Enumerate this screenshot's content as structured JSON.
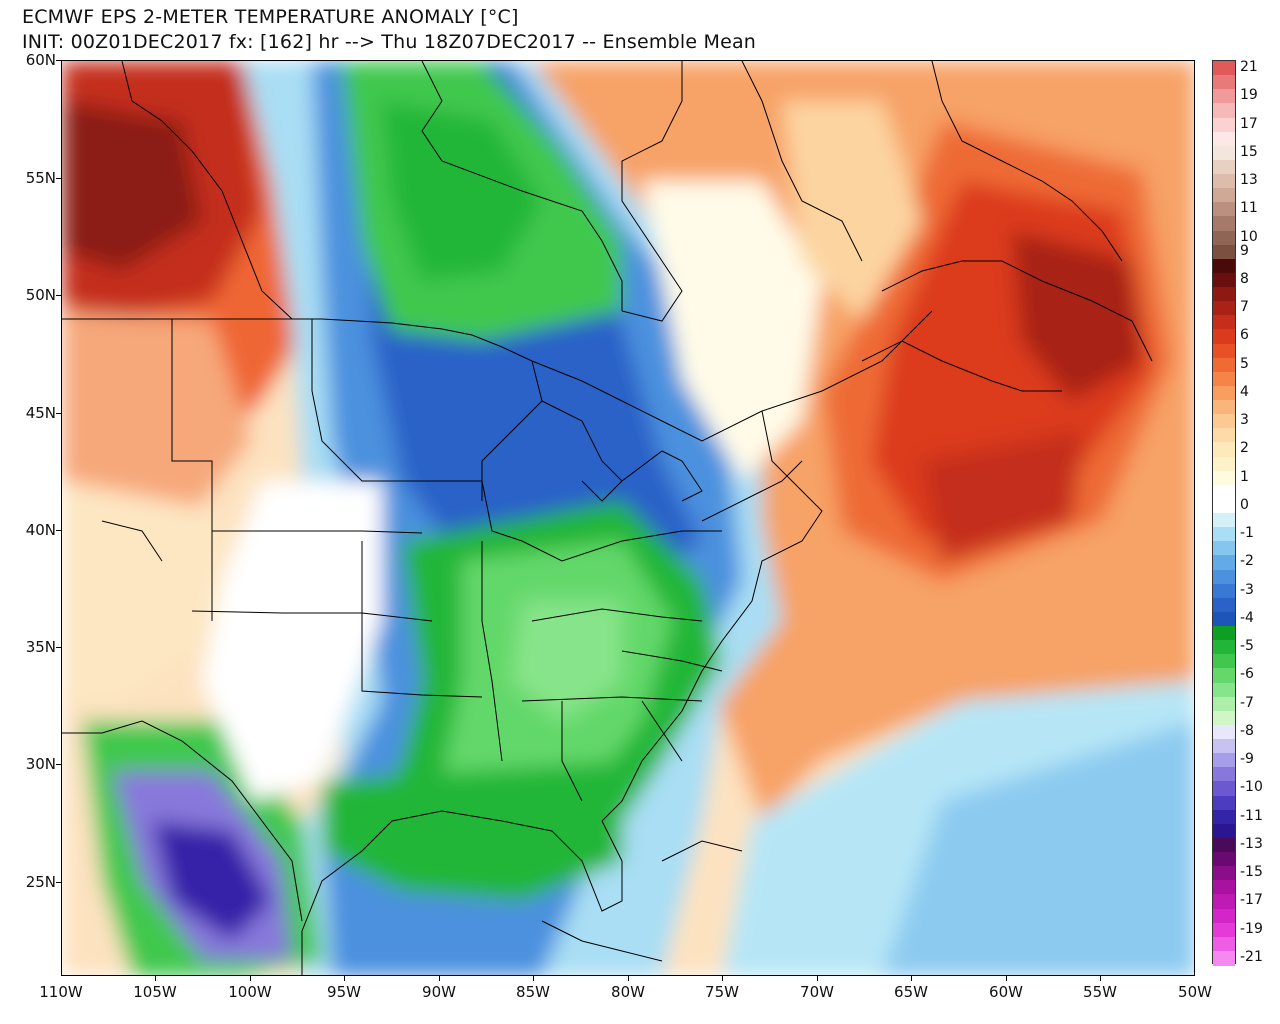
{
  "title": {
    "line1": "ECMWF EPS 2-METER TEMPERATURE ANOMALY [°C]",
    "line2": "INIT: 00Z01DEC2017 fx: [162] hr --> Thu 18Z07DEC2017 -- Ensemble Mean"
  },
  "map": {
    "lat_labels": [
      "60N",
      "55N",
      "50N",
      "45N",
      "40N",
      "35N",
      "30N",
      "25N"
    ],
    "lon_labels": [
      "110W",
      "105W",
      "100W",
      "95W",
      "90W",
      "85W",
      "80W",
      "75W",
      "70W",
      "65W",
      "60W",
      "55W",
      "50W"
    ],
    "extent": {
      "lon_min": -110,
      "lon_max": -50,
      "lat_min": 21,
      "lat_max": 60
    }
  },
  "colorbar": {
    "levels": [
      {
        "label": "21",
        "color": "#e05a5a"
      },
      {
        "label": "",
        "color": "#ea7a7a"
      },
      {
        "label": "19",
        "color": "#f09a9a"
      },
      {
        "label": "",
        "color": "#f6b8b8"
      },
      {
        "label": "17",
        "color": "#fad2d2"
      },
      {
        "label": "",
        "color": "#fde8e8"
      },
      {
        "label": "15",
        "color": "#f3e6dc"
      },
      {
        "label": "",
        "color": "#e8d0c2"
      },
      {
        "label": "13",
        "color": "#ddbcac"
      },
      {
        "label": "",
        "color": "#cfa896"
      },
      {
        "label": "11",
        "color": "#bb9080"
      },
      {
        "label": "",
        "color": "#a57a6a"
      },
      {
        "label": "10",
        "color": "#8f6555"
      },
      {
        "label": "9",
        "color": "#7a5040"
      },
      {
        "label": "",
        "color": "#4a0a0a"
      },
      {
        "label": "8",
        "color": "#6a0f0f"
      },
      {
        "label": "",
        "color": "#8c1a12"
      },
      {
        "label": "7",
        "color": "#a82316"
      },
      {
        "label": "",
        "color": "#c42e1a"
      },
      {
        "label": "6",
        "color": "#dc3a1c"
      },
      {
        "label": "",
        "color": "#e85025"
      },
      {
        "label": "5",
        "color": "#f06a34"
      },
      {
        "label": "",
        "color": "#f58448"
      },
      {
        "label": "4",
        "color": "#f89e5e"
      },
      {
        "label": "",
        "color": "#fab57a"
      },
      {
        "label": "3",
        "color": "#fcc993"
      },
      {
        "label": "",
        "color": "#fddaa8"
      },
      {
        "label": "2",
        "color": "#fde9ba"
      },
      {
        "label": "",
        "color": "#fdf2c8"
      },
      {
        "label": "1",
        "color": "#fffbe0"
      },
      {
        "label": "",
        "color": "#ffffff"
      },
      {
        "label": "0",
        "color": "#ffffff"
      },
      {
        "label": "",
        "color": "#d4f1fa"
      },
      {
        "label": "-1",
        "color": "#a9def4"
      },
      {
        "label": "",
        "color": "#86c6ee"
      },
      {
        "label": "-2",
        "color": "#63abe6"
      },
      {
        "label": "",
        "color": "#4b91de"
      },
      {
        "label": "-3",
        "color": "#3978d4"
      },
      {
        "label": "",
        "color": "#2a62c8"
      },
      {
        "label": "-4",
        "color": "#1d55b8"
      },
      {
        "label": "",
        "color": "#0d9e24"
      },
      {
        "label": "-5",
        "color": "#22b638"
      },
      {
        "label": "",
        "color": "#40c84e"
      },
      {
        "label": "-6",
        "color": "#64d86a"
      },
      {
        "label": "",
        "color": "#88e48a"
      },
      {
        "label": "-7",
        "color": "#adeeaa"
      },
      {
        "label": "",
        "color": "#d0f6c8"
      },
      {
        "label": "-8",
        "color": "#e8e8fa"
      },
      {
        "label": "",
        "color": "#c6c2f2"
      },
      {
        "label": "-9",
        "color": "#a69ee8"
      },
      {
        "label": "",
        "color": "#8878dc"
      },
      {
        "label": "-10",
        "color": "#6c58d0"
      },
      {
        "label": "",
        "color": "#4c3cc0"
      },
      {
        "label": "-11",
        "color": "#3424a8"
      },
      {
        "label": "",
        "color": "#2a1690"
      },
      {
        "label": "-13",
        "color": "#4a0a5a"
      },
      {
        "label": "",
        "color": "#6a0a70"
      },
      {
        "label": "-15",
        "color": "#8a0e88"
      },
      {
        "label": "",
        "color": "#a8129e"
      },
      {
        "label": "-17",
        "color": "#c01ab4"
      },
      {
        "label": "",
        "color": "#d426c8"
      },
      {
        "label": "-19",
        "color": "#e43ad8"
      },
      {
        "label": "",
        "color": "#ee5ee4"
      },
      {
        "label": "-21",
        "color": "#f48af0"
      }
    ]
  }
}
